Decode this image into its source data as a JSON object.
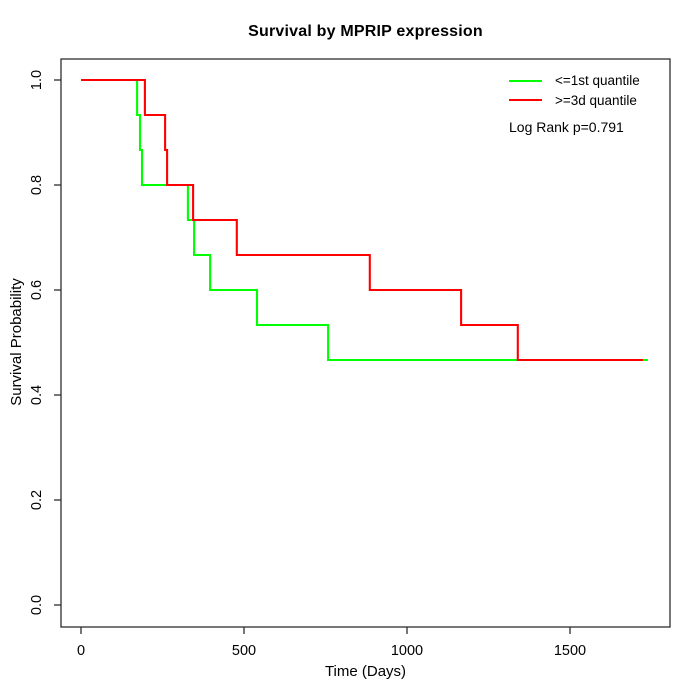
{
  "title": "Survival by MPRIP expression",
  "x_axis": {
    "label": "Time (Days)",
    "ticks": [
      "0",
      "500",
      "1000",
      "1500"
    ]
  },
  "y_axis": {
    "label": "Survival Probability",
    "ticks": [
      "1.0",
      "0.8",
      "0.6",
      "0.4",
      "0.2",
      "0.0"
    ]
  },
  "legend": {
    "items": [
      {
        "label": "<=1st quantile",
        "color": "#00ff00"
      },
      {
        "label": ">=3d quantile",
        "color": "#ff0000"
      }
    ],
    "stat_note": "Log Rank p=0.791"
  },
  "frame_color": "#2e2e2e",
  "chart_data": {
    "type": "line",
    "subtype": "kaplan-meier-step",
    "title": "Survival by MPRIP expression",
    "xlabel": "Time (Days)",
    "ylabel": "Survival Probability",
    "xlim": [
      0,
      1750
    ],
    "ylim": [
      0.0,
      1.0
    ],
    "x_ticks": [
      0,
      500,
      1000,
      1500
    ],
    "y_ticks": [
      0.0,
      0.2,
      0.4,
      0.6,
      0.8,
      1.0
    ],
    "grid": false,
    "legend_position": "top-right",
    "annotations": [
      "Log Rank p=0.791"
    ],
    "series": [
      {
        "name": "<=1st quantile",
        "color": "#00ff00",
        "start": [
          0,
          1.0
        ],
        "steps": [
          [
            172,
            0.9333
          ],
          [
            181,
            0.8667
          ],
          [
            187,
            0.8
          ],
          [
            328,
            0.7333
          ],
          [
            347,
            0.6667
          ],
          [
            396,
            0.6
          ],
          [
            540,
            0.5333
          ],
          [
            758,
            0.4667
          ]
        ],
        "end_time": 1739
      },
      {
        "name": ">=3d quantile",
        "color": "#ff0000",
        "start": [
          0,
          1.0
        ],
        "steps": [
          [
            196,
            0.9333
          ],
          [
            258,
            0.8667
          ],
          [
            264,
            0.8
          ],
          [
            344,
            0.7333
          ],
          [
            478,
            0.6667
          ],
          [
            886,
            0.6
          ],
          [
            1166,
            0.5333
          ],
          [
            1340,
            0.4667
          ]
        ],
        "end_time": 1724
      }
    ]
  }
}
